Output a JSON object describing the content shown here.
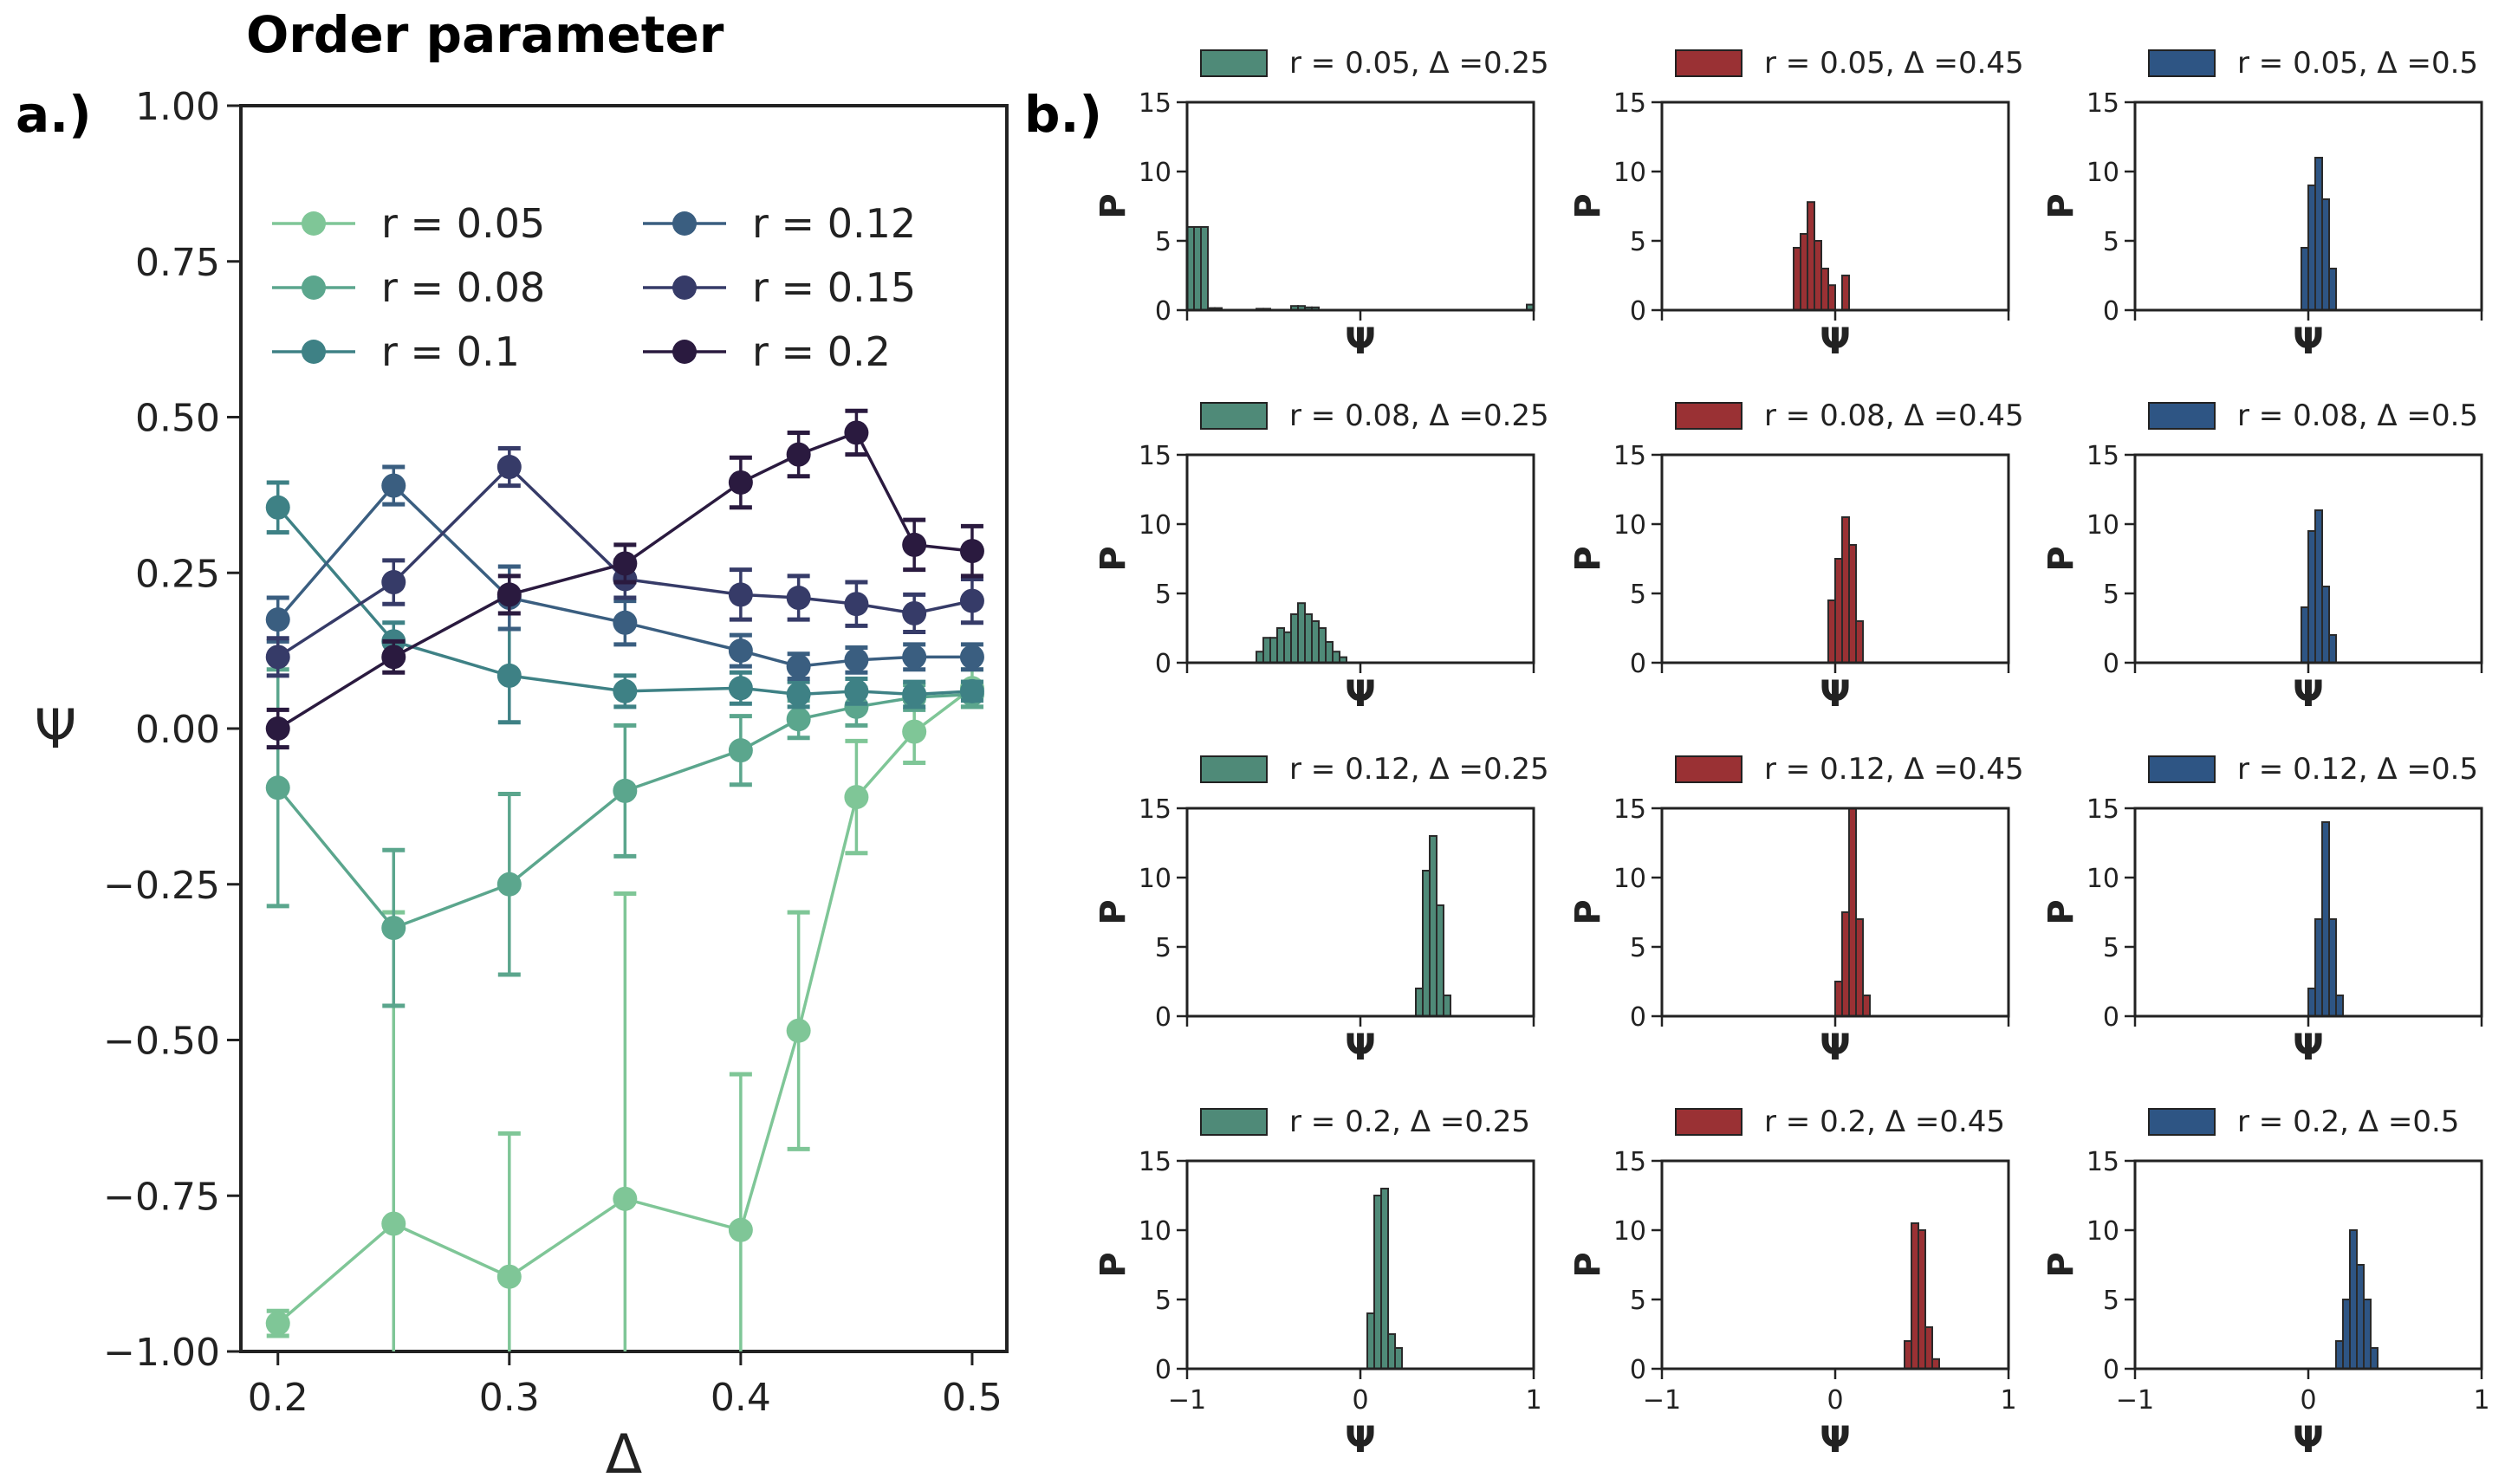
{
  "figure": {
    "title": "Order parameter",
    "panel_a_label": "a.)",
    "panel_b_label": "b.)"
  },
  "chart_data": [
    {
      "id": "order-parameter",
      "type": "line",
      "title": "Order parameter",
      "xlabel": "Δ",
      "ylabel": "Ψ",
      "xlim": [
        0.184,
        0.515
      ],
      "ylim": [
        -1.0,
        1.0
      ],
      "xticks": [
        0.2,
        0.3,
        0.4,
        0.5
      ],
      "xtick_labels": [
        "0.2",
        "0.3",
        "0.4",
        "0.5"
      ],
      "yticks": [
        -1.0,
        -0.75,
        -0.5,
        -0.25,
        0.0,
        0.25,
        0.5,
        0.75,
        1.0
      ],
      "ytick_labels": [
        "−1.00",
        "−0.75",
        "−0.50",
        "−0.25",
        "0.00",
        "0.25",
        "0.50",
        "0.75",
        "1.00"
      ],
      "x": [
        0.2,
        0.25,
        0.3,
        0.35,
        0.4,
        0.425,
        0.45,
        0.475,
        0.5
      ],
      "legend_position": "top",
      "series": [
        {
          "name": "r = 0.05",
          "color": "#7fc697",
          "values": [
            -0.955,
            -0.795,
            -0.88,
            -0.755,
            -0.805,
            -0.485,
            -0.11,
            -0.005,
            0.065
          ],
          "errors": [
            0.02,
            0.5,
            0.23,
            0.49,
            0.25,
            0.19,
            0.09,
            0.05,
            0.03
          ]
        },
        {
          "name": "r = 0.08",
          "color": "#5ba68d",
          "values": [
            -0.095,
            -0.32,
            -0.25,
            -0.1,
            -0.035,
            0.015,
            0.035,
            0.05,
            0.055
          ],
          "errors": [
            0.19,
            0.125,
            0.145,
            0.105,
            0.055,
            0.03,
            0.03,
            0.02,
            0.02
          ]
        },
        {
          "name": "r = 0.1",
          "color": "#3e8185",
          "values": [
            0.355,
            0.14,
            0.085,
            0.06,
            0.065,
            0.055,
            0.06,
            0.055,
            0.06
          ],
          "errors": [
            0.04,
            0.03,
            0.075,
            0.025,
            0.025,
            0.02,
            0.02,
            0.02,
            0.015
          ]
        },
        {
          "name": "r = 0.12",
          "color": "#3a5e80",
          "values": [
            0.175,
            0.39,
            0.21,
            0.17,
            0.125,
            0.1,
            0.11,
            0.115,
            0.115
          ],
          "errors": [
            0.035,
            0.03,
            0.05,
            0.035,
            0.025,
            0.02,
            0.02,
            0.02,
            0.02
          ]
        },
        {
          "name": "r = 0.15",
          "color": "#363b68",
          "values": [
            0.115,
            0.235,
            0.42,
            0.24,
            0.215,
            0.21,
            0.2,
            0.185,
            0.205
          ],
          "errors": [
            0.03,
            0.035,
            0.03,
            0.03,
            0.04,
            0.035,
            0.035,
            0.03,
            0.035
          ]
        },
        {
          "name": "r = 0.2",
          "color": "#2a1a3f",
          "values": [
            0.0,
            0.115,
            0.215,
            0.265,
            0.395,
            0.44,
            0.475,
            0.295,
            0.285
          ],
          "errors": [
            0.03,
            0.025,
            0.03,
            0.03,
            0.04,
            0.035,
            0.035,
            0.04,
            0.04
          ]
        }
      ]
    },
    {
      "id": "histogram-grid",
      "type": "bar",
      "description_label": "P(Ψ) histograms",
      "xlabel": "Ψ",
      "ylabel": "P",
      "xlim": [
        -1,
        1
      ],
      "ylim": [
        0,
        15
      ],
      "yticks": [
        0,
        5,
        10,
        15
      ],
      "ytick_labels": [
        "0",
        "5",
        "10",
        "15"
      ],
      "xticks": [
        -1,
        0,
        1
      ],
      "xtick_labels": [
        "−1",
        "0",
        "1"
      ],
      "bin_width": 0.04,
      "column_colors": [
        "#4f8a78",
        "#9a3134",
        "#2e5584"
      ],
      "rows": [
        {
          "r": "0.05",
          "panels": [
            {
              "legend": "r = 0.05, Δ =0.25",
              "bins": [
                [
                  -1.0,
                  6.0
                ],
                [
                  -0.96,
                  6.0
                ],
                [
                  -0.92,
                  6.0
                ],
                [
                  -0.88,
                  0.15
                ],
                [
                  -0.84,
                  0.15
                ],
                [
                  -0.6,
                  0.1
                ],
                [
                  -0.56,
                  0.1
                ],
                [
                  -0.4,
                  0.3
                ],
                [
                  -0.36,
                  0.3
                ],
                [
                  -0.32,
                  0.2
                ],
                [
                  -0.28,
                  0.2
                ],
                [
                  0.96,
                  0.4
                ]
              ]
            },
            {
              "legend": "r = 0.05, Δ =0.45",
              "bins": [
                [
                  -0.24,
                  4.5
                ],
                [
                  -0.2,
                  5.5
                ],
                [
                  -0.16,
                  7.8
                ],
                [
                  -0.12,
                  5.0
                ],
                [
                  -0.08,
                  3.0
                ],
                [
                  -0.04,
                  1.8
                ],
                [
                  0.04,
                  2.5
                ]
              ]
            },
            {
              "legend": "r = 0.05, Δ =0.5",
              "bins": [
                [
                  -0.04,
                  4.5
                ],
                [
                  0.0,
                  9.0
                ],
                [
                  0.04,
                  11.0
                ],
                [
                  0.08,
                  8.0
                ],
                [
                  0.12,
                  3.0
                ]
              ]
            }
          ]
        },
        {
          "r": "0.08",
          "panels": [
            {
              "legend": "r = 0.08, Δ =0.25",
              "bins": [
                [
                  -0.6,
                  0.8
                ],
                [
                  -0.56,
                  1.8
                ],
                [
                  -0.52,
                  1.8
                ],
                [
                  -0.48,
                  2.5
                ],
                [
                  -0.44,
                  2.2
                ],
                [
                  -0.4,
                  3.5
                ],
                [
                  -0.36,
                  4.3
                ],
                [
                  -0.32,
                  3.5
                ],
                [
                  -0.28,
                  3.0
                ],
                [
                  -0.24,
                  2.5
                ],
                [
                  -0.2,
                  1.5
                ],
                [
                  -0.16,
                  0.8
                ],
                [
                  -0.12,
                  0.4
                ]
              ]
            },
            {
              "legend": "r = 0.08, Δ =0.45",
              "bins": [
                [
                  -0.04,
                  4.5
                ],
                [
                  0.0,
                  7.5
                ],
                [
                  0.04,
                  10.5
                ],
                [
                  0.08,
                  8.5
                ],
                [
                  0.12,
                  3.0
                ]
              ]
            },
            {
              "legend": "r = 0.08, Δ =0.5",
              "bins": [
                [
                  -0.04,
                  4.0
                ],
                [
                  0.0,
                  9.5
                ],
                [
                  0.04,
                  11.0
                ],
                [
                  0.08,
                  5.5
                ],
                [
                  0.12,
                  2.0
                ]
              ]
            }
          ]
        },
        {
          "r": "0.12",
          "panels": [
            {
              "legend": "r = 0.12, Δ =0.25",
              "bins": [
                [
                  0.32,
                  2.0
                ],
                [
                  0.36,
                  10.5
                ],
                [
                  0.4,
                  13.0
                ],
                [
                  0.44,
                  8.0
                ],
                [
                  0.48,
                  1.5
                ]
              ]
            },
            {
              "legend": "r = 0.12, Δ =0.45",
              "bins": [
                [
                  0.0,
                  2.5
                ],
                [
                  0.04,
                  7.5
                ],
                [
                  0.08,
                  15.0
                ],
                [
                  0.12,
                  7.0
                ],
                [
                  0.16,
                  1.5
                ]
              ]
            },
            {
              "legend": "r = 0.12, Δ =0.5",
              "bins": [
                [
                  0.0,
                  2.0
                ],
                [
                  0.04,
                  7.0
                ],
                [
                  0.08,
                  14.0
                ],
                [
                  0.12,
                  7.0
                ],
                [
                  0.16,
                  1.5
                ]
              ]
            }
          ]
        },
        {
          "r": "0.2",
          "panels": [
            {
              "legend": "r = 0.2, Δ =0.25",
              "bins": [
                [
                  0.04,
                  4.0
                ],
                [
                  0.08,
                  12.5
                ],
                [
                  0.12,
                  13.0
                ],
                [
                  0.16,
                  2.5
                ],
                [
                  0.2,
                  1.5
                ]
              ]
            },
            {
              "legend": "r = 0.2, Δ =0.45",
              "bins": [
                [
                  0.4,
                  2.0
                ],
                [
                  0.44,
                  10.5
                ],
                [
                  0.48,
                  10.0
                ],
                [
                  0.52,
                  3.0
                ],
                [
                  0.56,
                  0.7
                ]
              ]
            },
            {
              "legend": "r = 0.2, Δ =0.5",
              "bins": [
                [
                  0.16,
                  2.0
                ],
                [
                  0.2,
                  5.0
                ],
                [
                  0.24,
                  10.0
                ],
                [
                  0.28,
                  7.5
                ],
                [
                  0.32,
                  5.0
                ],
                [
                  0.36,
                  1.5
                ]
              ]
            }
          ]
        }
      ]
    }
  ]
}
